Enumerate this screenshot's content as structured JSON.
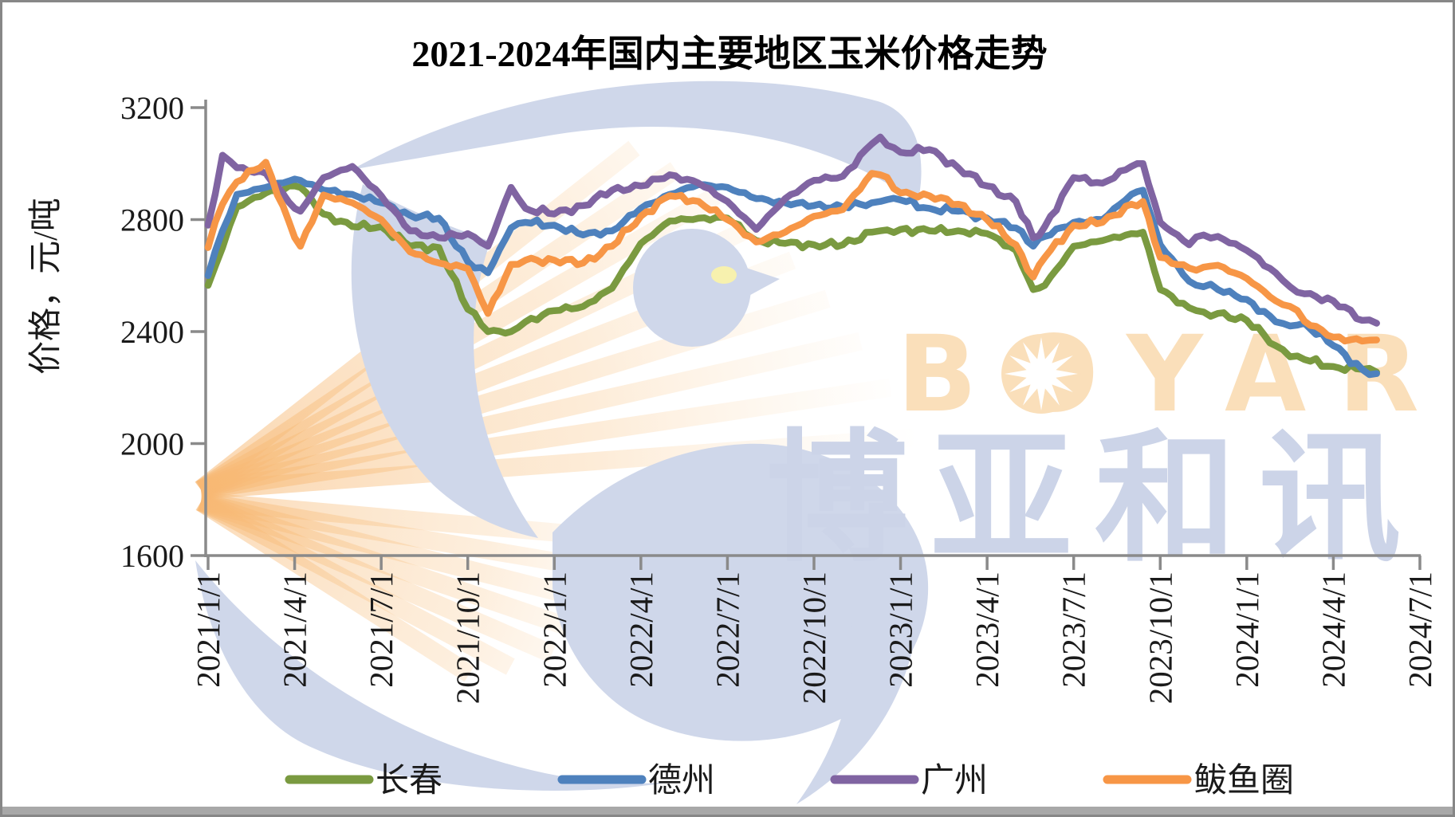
{
  "frame": {
    "border_color": "#878787",
    "bottom_bar_color": "#a8a8a8",
    "background": "#ffffff"
  },
  "watermark": {
    "latin": "BOYAR",
    "cjk": "博亚和讯",
    "stripe_color": "#f8c389",
    "swoosh_color": "#cfd7ea",
    "latin_color": "#fadfba",
    "cjk_color": "#ccd4e8",
    "eye_color": "#f7f1ae",
    "star_color": "#ffffff"
  },
  "chart_data": {
    "type": "line",
    "title": "2021-2024年国内主要地区玉米价格走势",
    "xlabel": "",
    "ylabel": "价格，元/吨",
    "ylim": [
      1600,
      3200
    ],
    "yticks": [
      1600,
      2000,
      2400,
      2800,
      3200
    ],
    "grid": false,
    "legend_position": "bottom",
    "axis_color": "#8a8a8a",
    "xtick_labels": [
      "2021/1/1",
      "2021/4/1",
      "2021/7/1",
      "2021/10/1",
      "2022/1/1",
      "2022/4/1",
      "2022/7/1",
      "2022/10/1",
      "2023/1/1",
      "2023/4/1",
      "2023/7/1",
      "2023/10/1",
      "2024/1/1",
      "2024/4/1",
      "2024/7/1"
    ],
    "xtick_months": [
      0,
      3,
      6,
      9,
      12,
      15,
      18,
      21,
      24,
      27,
      30,
      33,
      36,
      39,
      42
    ],
    "x_unit": "months since 2021/1/1",
    "x_months": [
      0,
      0.5,
      1,
      2,
      3,
      3.2,
      4,
      5,
      6,
      7,
      8,
      9,
      9.7,
      10.5,
      11,
      12,
      13,
      14,
      15,
      16,
      17,
      18,
      19,
      20,
      21,
      22,
      23,
      23.3,
      24,
      25,
      26,
      27,
      28,
      28.6,
      29,
      30,
      31,
      32,
      32.4,
      33,
      34,
      34.5,
      35,
      36,
      37,
      37.5,
      38,
      39,
      40,
      40.5
    ],
    "x_dates": [
      "2021/1/1",
      "2021/1/15",
      "2021/2/1",
      "2021/3/1",
      "2021/4/1",
      "2021/4/6",
      "2021/5/1",
      "2021/6/1",
      "2021/7/1",
      "2021/8/1",
      "2021/9/1",
      "2021/10/1",
      "2021/10/22",
      "2021/11/15",
      "2021/12/1",
      "2022/1/1",
      "2022/2/1",
      "2022/3/1",
      "2022/4/1",
      "2022/5/1",
      "2022/6/1",
      "2022/7/1",
      "2022/8/1",
      "2022/9/1",
      "2022/10/1",
      "2022/11/1",
      "2022/12/1",
      "2022/12/10",
      "2023/1/1",
      "2023/2/1",
      "2023/3/1",
      "2023/4/1",
      "2023/5/1",
      "2023/5/18",
      "2023/6/1",
      "2023/7/1",
      "2023/8/1",
      "2023/9/1",
      "2023/9/12",
      "2023/10/1",
      "2023/11/1",
      "2023/11/15",
      "2023/12/1",
      "2024/1/1",
      "2024/2/1",
      "2024/2/15",
      "2024/3/1",
      "2024/4/1",
      "2024/5/1",
      "2024/5/15"
    ],
    "series": [
      {
        "name": "长春",
        "slug": "changchun",
        "color": "#7A9A40",
        "values": [
          2565,
          2700,
          2845,
          2895,
          2920,
          2915,
          2820,
          2775,
          2775,
          2705,
          2700,
          2480,
          2400,
          2400,
          2435,
          2475,
          2490,
          2555,
          2715,
          2795,
          2805,
          2805,
          2725,
          2715,
          2710,
          2710,
          2755,
          2760,
          2765,
          2760,
          2760,
          2750,
          2690,
          2550,
          2565,
          2705,
          2725,
          2750,
          2755,
          2550,
          2485,
          2470,
          2465,
          2440,
          2350,
          2310,
          2300,
          2275,
          2265,
          2255
        ]
      },
      {
        "name": "德州",
        "slug": "dezhou",
        "color": "#4E81BD",
        "values": [
          2600,
          2760,
          2890,
          2915,
          2945,
          2940,
          2905,
          2890,
          2860,
          2815,
          2805,
          2650,
          2610,
          2770,
          2790,
          2780,
          2745,
          2760,
          2840,
          2890,
          2925,
          2915,
          2875,
          2860,
          2850,
          2845,
          2860,
          2865,
          2870,
          2840,
          2830,
          2805,
          2770,
          2705,
          2740,
          2790,
          2800,
          2890,
          2905,
          2710,
          2580,
          2560,
          2550,
          2515,
          2435,
          2420,
          2430,
          2350,
          2265,
          2250
        ]
      },
      {
        "name": "广州",
        "slug": "guangzhou",
        "color": "#8064A2",
        "values": [
          2780,
          3030,
          2985,
          2965,
          2840,
          2830,
          2950,
          2990,
          2885,
          2760,
          2735,
          2750,
          2705,
          2915,
          2840,
          2820,
          2850,
          2905,
          2920,
          2960,
          2930,
          2865,
          2765,
          2875,
          2940,
          2955,
          3070,
          3095,
          3040,
          3050,
          2985,
          2920,
          2865,
          2735,
          2775,
          2950,
          2930,
          2990,
          3000,
          2790,
          2710,
          2745,
          2740,
          2690,
          2610,
          2560,
          2535,
          2510,
          2440,
          2430
        ]
      },
      {
        "name": "鲅鱼圈",
        "slug": "bayuquan",
        "color": "#F79646",
        "values": [
          2700,
          2855,
          2935,
          3005,
          2736,
          2705,
          2888,
          2860,
          2800,
          2685,
          2645,
          2625,
          2465,
          2640,
          2655,
          2655,
          2645,
          2705,
          2812,
          2885,
          2865,
          2800,
          2720,
          2755,
          2812,
          2836,
          2965,
          2960,
          2895,
          2885,
          2855,
          2800,
          2710,
          2595,
          2665,
          2780,
          2790,
          2855,
          2865,
          2665,
          2627,
          2630,
          2637,
          2590,
          2510,
          2490,
          2437,
          2380,
          2366,
          2370
        ]
      }
    ]
  }
}
